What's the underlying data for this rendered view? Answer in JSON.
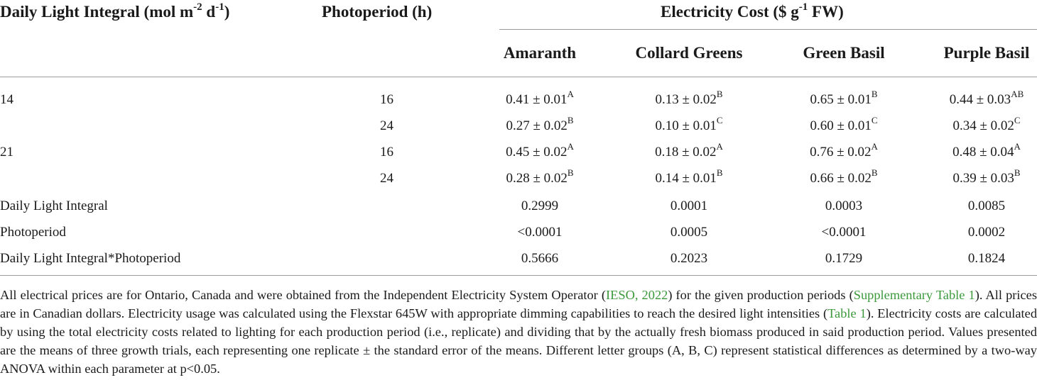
{
  "header": {
    "dli": {
      "pre": "Daily Light Integral (mol m",
      "sup1": "-2",
      "mid": " d",
      "sup2": "-1",
      "post": ")"
    },
    "photoperiod": "Photoperiod (h)",
    "cost": "Electricity Cost ($ g",
    "cost_sup": "-1",
    "cost_post": " FW)",
    "species": [
      "Amaranth",
      "Collard Greens",
      "Green Basil",
      "Purple Basil"
    ]
  },
  "rows": [
    {
      "dli": "14",
      "pp": "16",
      "cells": [
        {
          "v": "0.41 ± 0.01",
          "s": "A"
        },
        {
          "v": "0.13 ± 0.02",
          "s": "B"
        },
        {
          "v": "0.65 ± 0.01",
          "s": "B"
        },
        {
          "v": "0.44 ± 0.03",
          "s": "AB"
        }
      ]
    },
    {
      "dli": "",
      "pp": "24",
      "cells": [
        {
          "v": "0.27 ± 0.02",
          "s": "B"
        },
        {
          "v": "0.10 ± 0.01",
          "s": "C"
        },
        {
          "v": "0.60 ± 0.01",
          "s": "C"
        },
        {
          "v": "0.34 ± 0.02",
          "s": "C"
        }
      ]
    },
    {
      "dli": "21",
      "pp": "16",
      "cells": [
        {
          "v": "0.45 ± 0.02",
          "s": "A"
        },
        {
          "v": "0.18 ± 0.02",
          "s": "A"
        },
        {
          "v": "0.76 ± 0.02",
          "s": "A"
        },
        {
          "v": "0.48 ± 0.04",
          "s": "A"
        }
      ]
    },
    {
      "dli": "",
      "pp": "24",
      "cells": [
        {
          "v": "0.28 ± 0.02",
          "s": "B"
        },
        {
          "v": "0.14 ± 0.01",
          "s": "B"
        },
        {
          "v": "0.66 ± 0.02",
          "s": "B"
        },
        {
          "v": "0.39 ± 0.03",
          "s": "B"
        }
      ]
    }
  ],
  "stats": [
    {
      "label": "Daily Light Integral",
      "vals": [
        "0.2999",
        "0.0001",
        "0.0003",
        "0.0085"
      ]
    },
    {
      "label": "Photoperiod",
      "vals": [
        "<0.0001",
        "0.0005",
        "<0.0001",
        "0.0002"
      ]
    },
    {
      "label": "Daily Light Integral*Photoperiod",
      "vals": [
        "0.5666",
        "0.2023",
        "0.1729",
        "0.1824"
      ]
    }
  ],
  "footnote": {
    "t1": "All electrical prices are for Ontario, Canada and were obtained from the Independent Electricity System Operator (",
    "link1": "IESO, 2022",
    "t2": ") for the given production periods (",
    "link2": "Supplementary Table 1",
    "t3": "). All prices are in Canadian dollars. Electricity usage was calculated using the Flexstar 645W with appropriate dimming capabilities to reach the desired light intensities (",
    "link3": "Table 1",
    "t4": "). Electricity costs are calculated by using the total electricity costs related to lighting for each production period (i.e., replicate) and dividing that by the actually fresh biomass produced in said production period. Values presented are the means of three growth trials, each representing one replicate ± the standard error of the means. Different letter groups (A, B, C) represent statistical differences as determined by a two-way ANOVA within each parameter at p<0.05."
  }
}
